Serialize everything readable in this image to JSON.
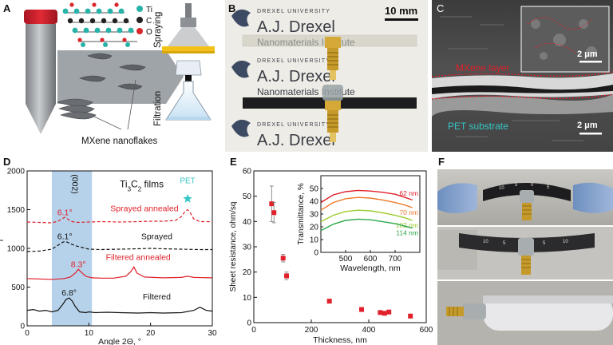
{
  "panel_labels": {
    "a": "A",
    "b": "B",
    "c": "C",
    "d": "D",
    "e": "E",
    "f": "F"
  },
  "panel_a": {
    "legend": [
      {
        "symbol": "Ti",
        "color": "#27b3a8"
      },
      {
        "symbol": "C",
        "color": "#222222"
      },
      {
        "symbol": "O",
        "color": "#d9262b"
      }
    ],
    "spraying_label": "Spraying",
    "filtration_label": "Filtration",
    "nanoflakes_label": "MXene nanoflakes"
  },
  "panel_b": {
    "scale_bar": "10 mm",
    "header_small": "DREXEL UNIVERSITY",
    "header_big": "A.J. Drexel",
    "header_sub": "Nanomaterials Institute"
  },
  "panel_c": {
    "inset_scale": "2 μm",
    "main_scale": "2 μm",
    "mxene_label": "MXene layer",
    "pet_label": "PET substrate",
    "mxene_color": "#e0202a",
    "pet_color": "#35c6c6"
  },
  "chart_d": {
    "type": "line",
    "title": "Ti3C2 films",
    "title_main": "Ti",
    "title_sub1": "3",
    "title_mid": "C",
    "title_sub2": "2",
    "title_tail": " films",
    "xlabel": "Angle 2Θ, °",
    "ylabel": "I",
    "xlim": [
      0,
      30
    ],
    "ylim": [
      0,
      2000
    ],
    "xticks": [
      "0",
      "10",
      "20",
      "30"
    ],
    "yticks": [
      "0",
      "500",
      "1000",
      "1500",
      "2000"
    ],
    "peak_index_label": "(002)",
    "pet_label": "PET",
    "highlight_range": [
      4,
      10.5
    ],
    "series": [
      {
        "name": "Sprayed annealed",
        "color": "#e0202a",
        "dash": true,
        "peak_label": "6.1°",
        "x": [
          0,
          2,
          4,
          5,
          5.8,
          6.1,
          6.5,
          7,
          8,
          10,
          12,
          15,
          18,
          20,
          22,
          24,
          25,
          25.6,
          26,
          26.5,
          27,
          28,
          30
        ],
        "y": [
          1340,
          1335,
          1330,
          1350,
          1390,
          1400,
          1385,
          1350,
          1335,
          1340,
          1345,
          1340,
          1345,
          1350,
          1350,
          1360,
          1410,
          1480,
          1500,
          1450,
          1380,
          1345,
          1345
        ]
      },
      {
        "name": "Sprayed",
        "color": "#111111",
        "dash": true,
        "peak_label": "6.1°",
        "x": [
          0,
          2,
          4,
          5,
          5.8,
          6.1,
          6.5,
          7,
          8,
          9,
          10,
          12,
          15,
          18,
          20,
          22,
          25,
          28,
          30
        ],
        "y": [
          960,
          965,
          990,
          1040,
          1080,
          1090,
          1080,
          1060,
          1030,
          1010,
          990,
          985,
          990,
          995,
          1000,
          995,
          990,
          985,
          985
        ]
      },
      {
        "name": "Filtered annealed",
        "color": "#e0202a",
        "dash": false,
        "peak_label": "8.3°",
        "x": [
          0,
          2,
          4,
          6,
          7,
          7.8,
          8.3,
          8.8,
          9.5,
          10.5,
          12,
          14,
          16,
          16.8,
          17.3,
          17.8,
          19,
          22,
          25,
          26,
          27,
          30
        ],
        "y": [
          610,
          605,
          600,
          610,
          630,
          680,
          730,
          690,
          640,
          620,
          615,
          615,
          640,
          700,
          760,
          680,
          630,
          620,
          625,
          640,
          625,
          620
        ]
      },
      {
        "name": "Filtered",
        "color": "#111111",
        "dash": false,
        "peak_label": "6.8°",
        "x": [
          0,
          1,
          2,
          3,
          4,
          5,
          5.8,
          6.3,
          6.8,
          7.3,
          7.8,
          8.5,
          9.5,
          10,
          11,
          13,
          15,
          18,
          20,
          22,
          25,
          27,
          28,
          29,
          30
        ],
        "y": [
          200,
          210,
          190,
          200,
          180,
          200,
          280,
          340,
          360,
          320,
          250,
          180,
          170,
          180,
          170,
          175,
          170,
          165,
          170,
          165,
          170,
          200,
          240,
          200,
          190
        ]
      }
    ]
  },
  "chart_e": {
    "type": "scatter",
    "xlabel": "Thickness, nm",
    "ylabel": "Sheet resistance, ohm/sq",
    "xlim": [
      0,
      600
    ],
    "ylim": [
      0,
      60
    ],
    "xticks": [
      "0",
      "200",
      "400",
      "600"
    ],
    "yticks": [
      "0",
      "10",
      "20",
      "30",
      "40",
      "50",
      "60"
    ],
    "color": "#e0202a",
    "points": [
      {
        "x": 62,
        "y": 47,
        "err": 7
      },
      {
        "x": 70,
        "y": 43.5,
        "err": 4
      },
      {
        "x": 102,
        "y": 25.5,
        "err": 1.5
      },
      {
        "x": 114,
        "y": 18.5,
        "err": 1.5
      },
      {
        "x": 263,
        "y": 8.5,
        "err": 0.5
      },
      {
        "x": 375,
        "y": 5.2,
        "err": 0.4
      },
      {
        "x": 440,
        "y": 4.0,
        "err": 0.3
      },
      {
        "x": 455,
        "y": 3.7,
        "err": 0.3
      },
      {
        "x": 470,
        "y": 4.2,
        "err": 0.3
      },
      {
        "x": 545,
        "y": 2.6,
        "err": 0.3
      }
    ],
    "inset": {
      "type": "line",
      "xlabel": "Wavelength, nm",
      "ylabel": "Transmittance, %",
      "xlim": [
        400,
        800
      ],
      "ylim": [
        0,
        60
      ],
      "xticks": [
        "500",
        "600",
        "700"
      ],
      "yticks": [
        "0",
        "10",
        "20",
        "30",
        "40",
        "50"
      ],
      "series": [
        {
          "name": "62 nm",
          "color": "#e0202a",
          "x": [
            400,
            450,
            500,
            550,
            600,
            650,
            700,
            740,
            770
          ],
          "y": [
            39,
            45,
            47.5,
            48.5,
            48,
            47,
            45.5,
            43,
            41
          ]
        },
        {
          "name": "70 nm",
          "color": "#f07a2a",
          "x": [
            400,
            450,
            500,
            550,
            600,
            650,
            700,
            740,
            770
          ],
          "y": [
            33,
            39,
            42,
            43,
            42.5,
            41,
            39,
            37,
            35
          ]
        },
        {
          "name": "102 nm",
          "color": "#9ccc2e",
          "x": [
            400,
            450,
            500,
            550,
            600,
            650,
            700,
            740,
            770
          ],
          "y": [
            24,
            29,
            32,
            33,
            32.5,
            31,
            29,
            27,
            25
          ]
        },
        {
          "name": "114 nm",
          "color": "#2ea84a",
          "x": [
            400,
            450,
            500,
            550,
            600,
            650,
            700,
            740,
            770
          ],
          "y": [
            17,
            22,
            25,
            26,
            25.5,
            24,
            22.5,
            20.5,
            19
          ]
        }
      ]
    }
  },
  "chart_data": [
    {
      "type": "line",
      "title": "Ti3C2 films",
      "xlabel": "Angle 2Θ, °",
      "xlim": [
        0,
        30
      ],
      "ylim": [
        0,
        2000
      ],
      "ref": "chart_d"
    },
    {
      "type": "scatter",
      "xlabel": "Thickness, nm",
      "ylabel": "Sheet resistance, ohm/sq",
      "xlim": [
        0,
        600
      ],
      "ylim": [
        0,
        60
      ],
      "ref": "chart_e"
    }
  ],
  "panel_f": {
    "ruler_numbers_top": [
      "10",
      "5",
      "0",
      "5"
    ],
    "ruler_numbers_mid": [
      "10",
      "5",
      "0",
      "5",
      "10"
    ]
  }
}
